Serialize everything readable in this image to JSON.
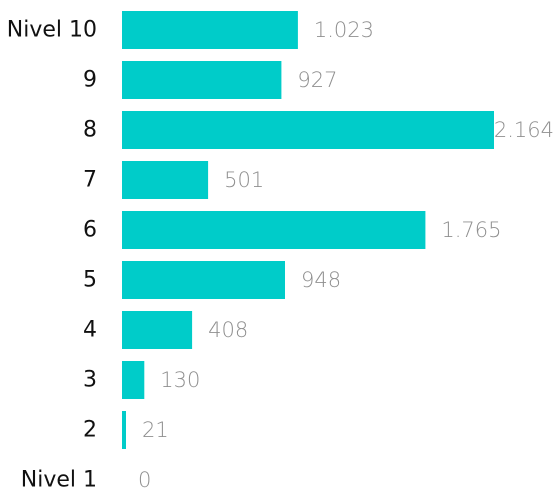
{
  "colors": {
    "bar": "#00CCC9",
    "category_text": "#111111",
    "value_text": "#8F8F8F",
    "background": "#FFFFFF"
  },
  "chart_data": {
    "type": "bar",
    "orientation": "horizontal",
    "title": "",
    "xlabel": "",
    "ylabel": "",
    "grid": false,
    "categories": [
      "Nivel 10",
      "9",
      "8",
      "7",
      "6",
      "5",
      "4",
      "3",
      "2",
      "Nivel 1"
    ],
    "values": [
      1023,
      927,
      2164,
      501,
      1765,
      948,
      408,
      130,
      21,
      0
    ],
    "value_labels": [
      "1.023",
      "927",
      "2.164",
      "501",
      "1.765",
      "948",
      "408",
      "130",
      "21",
      "0"
    ],
    "xlim": [
      0,
      2164
    ]
  }
}
